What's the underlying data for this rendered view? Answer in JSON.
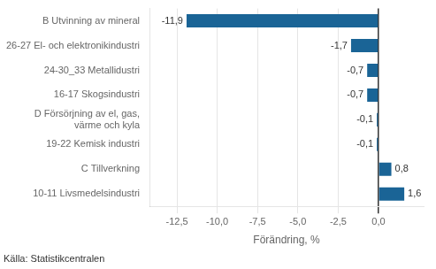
{
  "chart_data": {
    "type": "bar",
    "orientation": "horizontal",
    "categories": [
      "B Utvinning av mineral",
      "26-27 El- och elektronikindustri",
      "24-30_33 Metallidustri",
      "16-17 Skogsindustri",
      "D Försörjning av el, gas,\nvärme och kyla",
      "19-22 Kemisk industri",
      "C Tillverkning",
      "10-11 Livsmedelsindustri"
    ],
    "values": [
      -11.9,
      -1.7,
      -0.7,
      -0.7,
      -0.1,
      -0.1,
      0.8,
      1.6
    ],
    "value_labels": [
      "-11,9",
      "-1,7",
      "-0,7",
      "-0,7",
      "-0,1",
      "-0,1",
      "0,8",
      "1,6"
    ],
    "data_labels": true,
    "color": "#1a6496",
    "xlabel": "Förändring, %",
    "xlim": [
      -14.2,
      2.8
    ],
    "xticks": [
      {
        "value": -12.5,
        "label": "-12,5"
      },
      {
        "value": -10.0,
        "label": "-10,0"
      },
      {
        "value": -7.5,
        "label": "-7,5"
      },
      {
        "value": -5.0,
        "label": "-5,0"
      },
      {
        "value": -2.5,
        "label": "-2,5"
      },
      {
        "value": 0.0,
        "label": "0,0"
      }
    ],
    "grid": true,
    "annotations": [
      "Källa: Statistikcentralen"
    ]
  }
}
